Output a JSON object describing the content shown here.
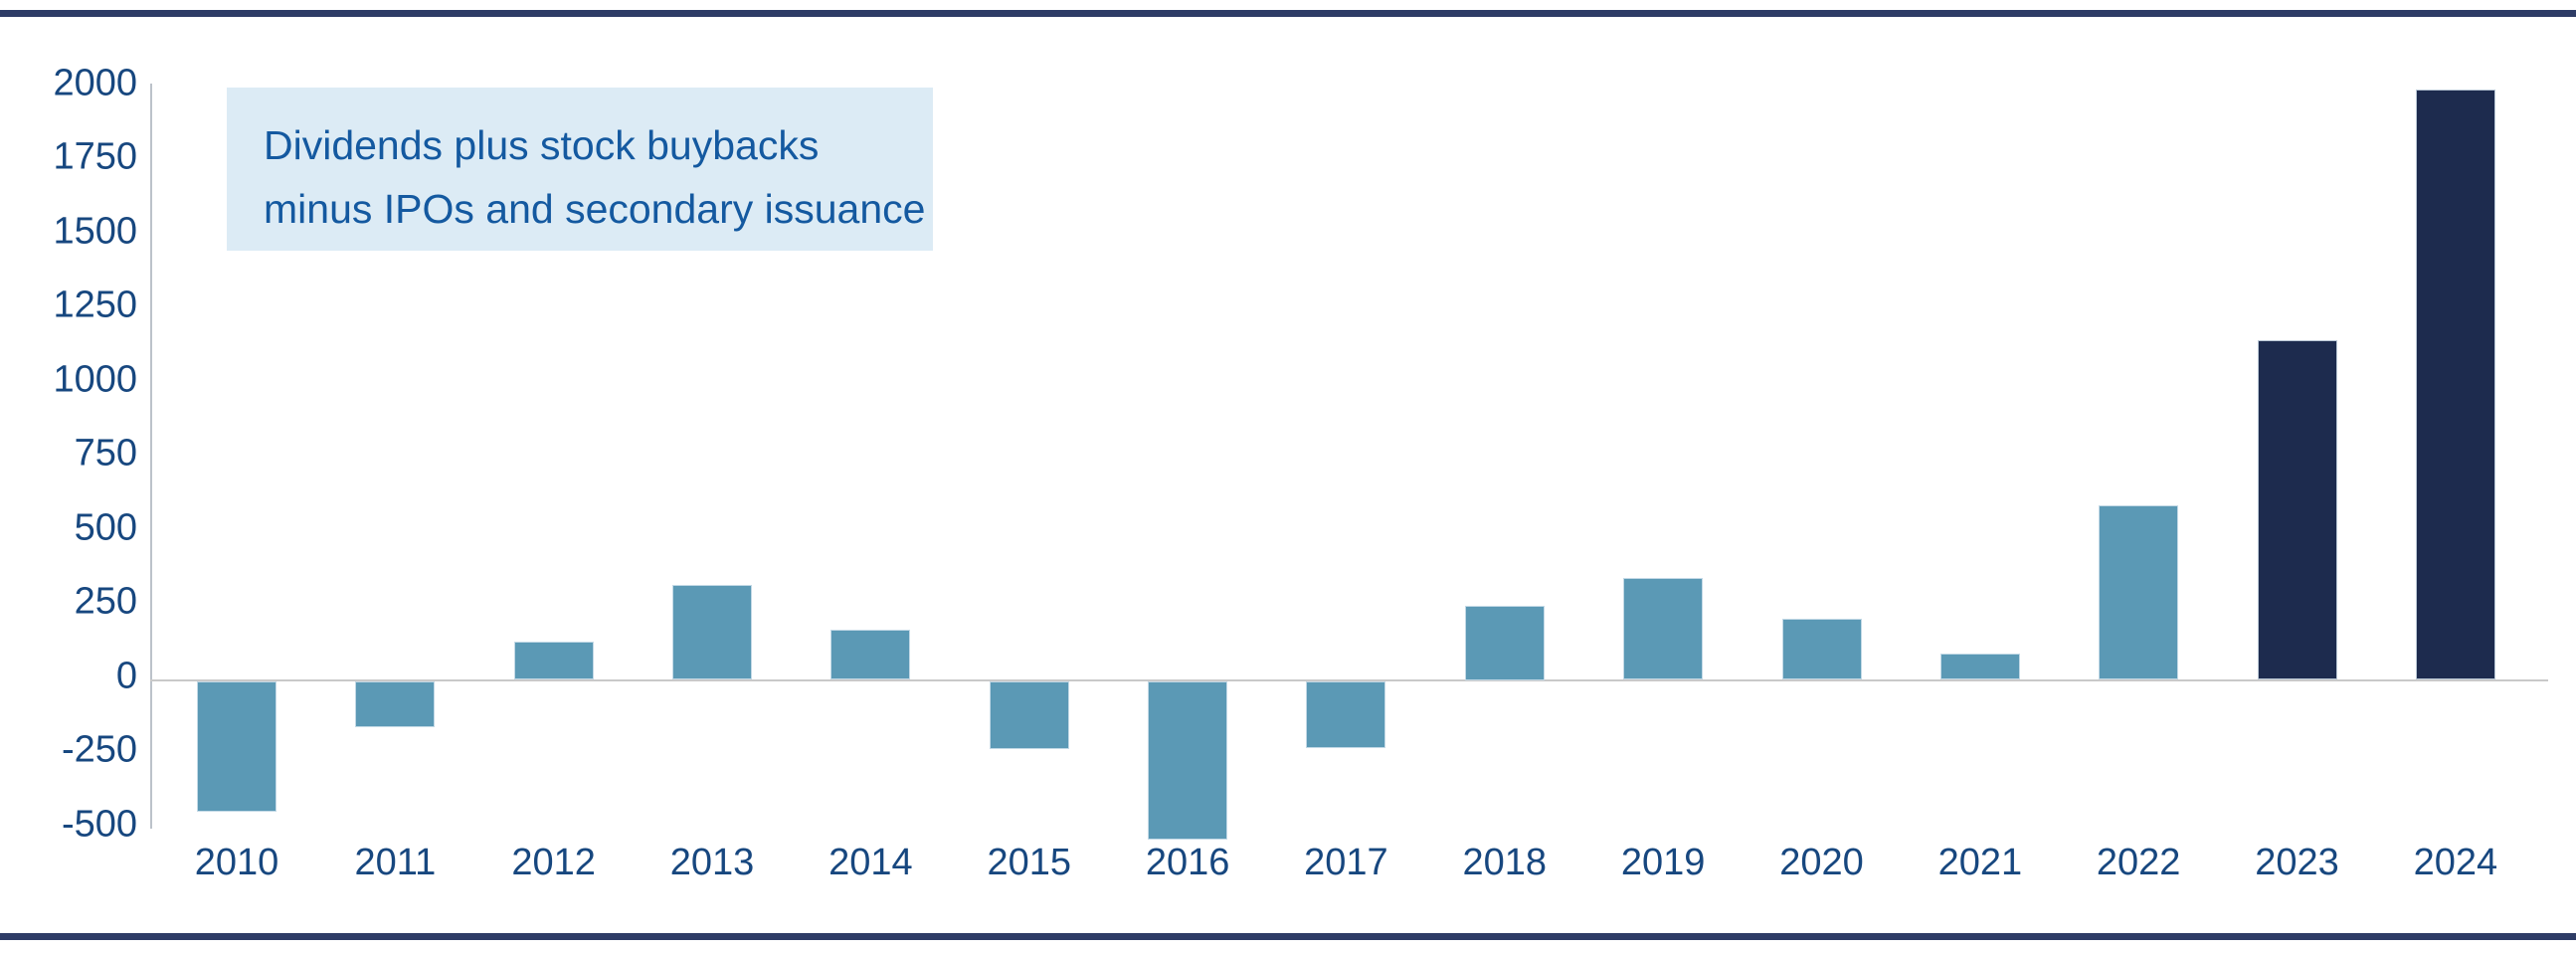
{
  "annotation": {
    "line1": "Dividends plus stock buybacks",
    "line2": "minus IPOs and secondary issuance"
  },
  "colors": {
    "bar_default": "#5b99b5",
    "bar_highlight": "#1d2b4e",
    "annotation_bg": "#dcebf5",
    "annotation_text": "#1459a0",
    "axis_text": "#17477f",
    "rule_navy": "#2e3c66",
    "zero_line": "#c9c9c9",
    "axis_line": "#bcc2ca"
  },
  "chart_data": {
    "type": "bar",
    "title": "Dividends plus stock buybacks minus IPOs and secondary issuance",
    "categories": [
      "2010",
      "2011",
      "2012",
      "2013",
      "2014",
      "2015",
      "2016",
      "2017",
      "2018",
      "2019",
      "2020",
      "2021",
      "2022",
      "2023",
      "2024"
    ],
    "values": [
      -440,
      -155,
      130,
      320,
      170,
      -230,
      -535,
      -225,
      250,
      345,
      205,
      90,
      590,
      1145,
      1990
    ],
    "series": [
      {
        "name": "Dividends plus stock buybacks minus IPOs and secondary issuance",
        "values": [
          -440,
          -155,
          130,
          320,
          170,
          -230,
          -535,
          -225,
          250,
          345,
          205,
          90,
          590,
          1145,
          1990
        ]
      }
    ],
    "highlight_from_index": 13,
    "xlabel": "",
    "ylabel": "",
    "y_axis": {
      "ticks": [
        2000,
        1750,
        1500,
        1250,
        1000,
        750,
        500,
        250,
        0,
        -250,
        -500
      ],
      "min": -575,
      "max": 2000
    },
    "ylim": [
      -575,
      2000
    ],
    "grid": "zero-line-only",
    "legend": "none"
  }
}
